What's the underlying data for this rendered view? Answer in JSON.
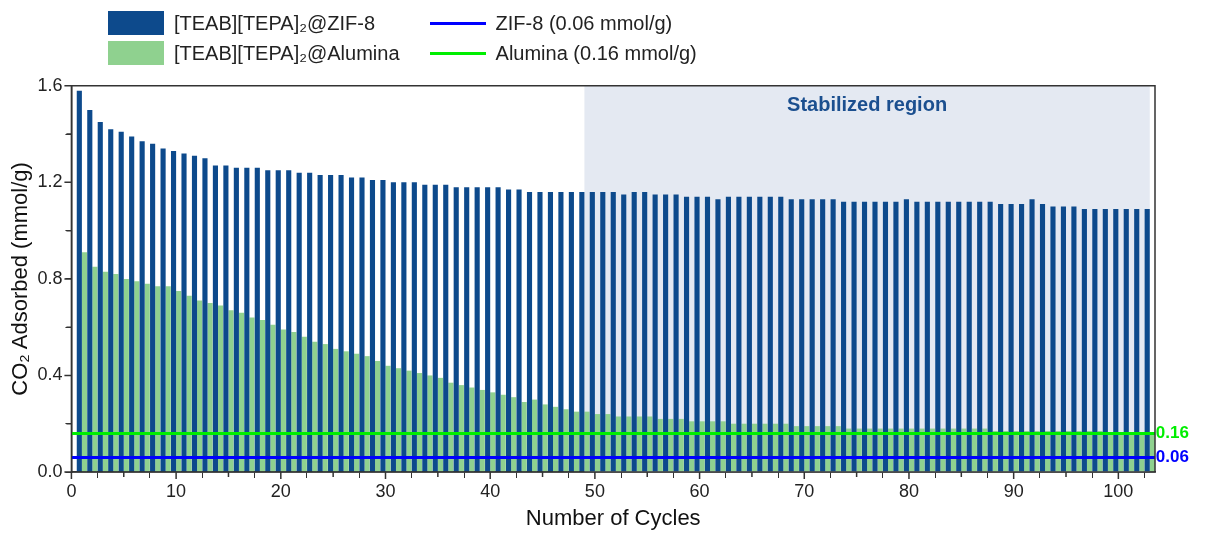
{
  "chart_data": {
    "type": "bar",
    "xlabel": "Number of Cycles",
    "ylabel": "CO₂ Adsorbed (mmol/g)",
    "x": [
      1,
      2,
      3,
      4,
      5,
      6,
      7,
      8,
      9,
      10,
      11,
      12,
      13,
      14,
      15,
      16,
      17,
      18,
      19,
      20,
      21,
      22,
      23,
      24,
      25,
      26,
      27,
      28,
      29,
      30,
      31,
      32,
      33,
      34,
      35,
      36,
      37,
      38,
      39,
      40,
      41,
      42,
      43,
      44,
      45,
      46,
      47,
      48,
      49,
      50,
      51,
      52,
      53,
      54,
      55,
      56,
      57,
      58,
      59,
      60,
      61,
      62,
      63,
      64,
      65,
      66,
      67,
      68,
      69,
      70,
      71,
      72,
      73,
      74,
      75,
      76,
      77,
      78,
      79,
      80,
      81,
      82,
      83,
      84,
      85,
      86,
      87,
      88,
      89,
      90,
      91,
      92,
      93,
      94,
      95,
      96,
      97,
      98,
      99,
      100,
      101,
      102,
      103
    ],
    "series": [
      {
        "name": "[TEAB][TEPA]₂@ZIF-8",
        "color": "#0d4a8c",
        "values": [
          1.58,
          1.5,
          1.45,
          1.42,
          1.41,
          1.39,
          1.37,
          1.36,
          1.34,
          1.33,
          1.32,
          1.31,
          1.3,
          1.27,
          1.27,
          1.26,
          1.26,
          1.26,
          1.25,
          1.25,
          1.25,
          1.24,
          1.24,
          1.23,
          1.23,
          1.23,
          1.22,
          1.22,
          1.21,
          1.21,
          1.2,
          1.2,
          1.2,
          1.19,
          1.19,
          1.19,
          1.18,
          1.18,
          1.18,
          1.18,
          1.18,
          1.17,
          1.17,
          1.16,
          1.16,
          1.16,
          1.16,
          1.16,
          1.16,
          1.16,
          1.16,
          1.16,
          1.15,
          1.16,
          1.16,
          1.15,
          1.15,
          1.15,
          1.14,
          1.14,
          1.14,
          1.13,
          1.14,
          1.14,
          1.14,
          1.14,
          1.14,
          1.14,
          1.13,
          1.13,
          1.13,
          1.13,
          1.13,
          1.12,
          1.12,
          1.12,
          1.12,
          1.12,
          1.12,
          1.13,
          1.12,
          1.12,
          1.12,
          1.12,
          1.12,
          1.12,
          1.12,
          1.12,
          1.11,
          1.11,
          1.11,
          1.13,
          1.11,
          1.1,
          1.1,
          1.1,
          1.09,
          1.09,
          1.09,
          1.09,
          1.09,
          1.09,
          1.09
        ]
      },
      {
        "name": "[TEAB][TEPA]₂@Alumina",
        "color": "#8fd18f",
        "values": [
          0.91,
          0.85,
          0.83,
          0.82,
          0.8,
          0.79,
          0.78,
          0.77,
          0.77,
          0.75,
          0.73,
          0.71,
          0.7,
          0.69,
          0.67,
          0.66,
          0.64,
          0.63,
          0.61,
          0.59,
          0.58,
          0.56,
          0.54,
          0.53,
          0.51,
          0.5,
          0.49,
          0.48,
          0.46,
          0.44,
          0.43,
          0.42,
          0.41,
          0.4,
          0.39,
          0.37,
          0.36,
          0.35,
          0.34,
          0.33,
          0.32,
          0.31,
          0.29,
          0.3,
          0.28,
          0.27,
          0.26,
          0.25,
          0.25,
          0.24,
          0.24,
          0.23,
          0.23,
          0.23,
          0.23,
          0.22,
          0.22,
          0.22,
          0.21,
          0.21,
          0.21,
          0.21,
          0.2,
          0.2,
          0.2,
          0.2,
          0.2,
          0.2,
          0.19,
          0.19,
          0.19,
          0.19,
          0.19,
          0.18,
          0.18,
          0.18,
          0.18,
          0.18,
          0.18,
          0.18,
          0.18,
          0.18,
          0.18,
          0.18,
          0.18,
          0.18,
          0.18,
          0.17,
          0.17,
          0.17,
          0.17,
          0.17,
          0.17,
          0.17,
          0.17,
          0.17,
          0.17,
          0.17,
          0.16,
          0.16,
          0.16,
          0.16,
          0.16
        ]
      }
    ],
    "xlim": [
      0,
      103.5
    ],
    "xticks": [
      {
        "value": 0,
        "label": "0"
      },
      {
        "value": 5,
        "label": null
      },
      {
        "value": 10,
        "label": "10"
      },
      {
        "value": 15,
        "label": null
      },
      {
        "value": 20,
        "label": "20"
      },
      {
        "value": 25,
        "label": null
      },
      {
        "value": 30,
        "label": "30"
      },
      {
        "value": 35,
        "label": null
      },
      {
        "value": 40,
        "label": "40"
      },
      {
        "value": 45,
        "label": null
      },
      {
        "value": 50,
        "label": "50"
      },
      {
        "value": 55,
        "label": null
      },
      {
        "value": 60,
        "label": "60"
      },
      {
        "value": 65,
        "label": null
      },
      {
        "value": 70,
        "label": "70"
      },
      {
        "value": 75,
        "label": null
      },
      {
        "value": 80,
        "label": "80"
      },
      {
        "value": 85,
        "label": null
      },
      {
        "value": 90,
        "label": "90"
      },
      {
        "value": 95,
        "label": null
      },
      {
        "value": 100,
        "label": "100"
      }
    ],
    "ylim": [
      0,
      1.6
    ],
    "yticks": [
      {
        "value": 0,
        "label": "0.0"
      },
      {
        "value": 0.2,
        "label": null
      },
      {
        "value": 0.4,
        "label": "0.4"
      },
      {
        "value": 0.6,
        "label": null
      },
      {
        "value": 0.8,
        "label": "0.8"
      },
      {
        "value": 1.0,
        "label": null
      },
      {
        "value": 1.2,
        "label": "1.2"
      },
      {
        "value": 1.4,
        "label": null
      },
      {
        "value": 1.6,
        "label": "1.6"
      }
    ],
    "ref_lines": [
      {
        "axis": "y",
        "value": 0.06,
        "label": "ZIF-8 (0.06 mmol/g)",
        "color": "#0000ff"
      },
      {
        "axis": "y",
        "value": 0.16,
        "label": "Alumina (0.16 mmol/g)",
        "color": "#00ee00"
      }
    ],
    "bands": [
      {
        "axis": "x",
        "from": 49,
        "to": 103,
        "label": "Stabilized region",
        "color": "#e4e9f2"
      }
    ],
    "annotations": [
      {
        "text": "0.16",
        "x": 103,
        "y": 0.16
      },
      {
        "text": "0.06",
        "x": 103,
        "y": 0.06
      }
    ],
    "legend": "top left",
    "grid": false
  }
}
